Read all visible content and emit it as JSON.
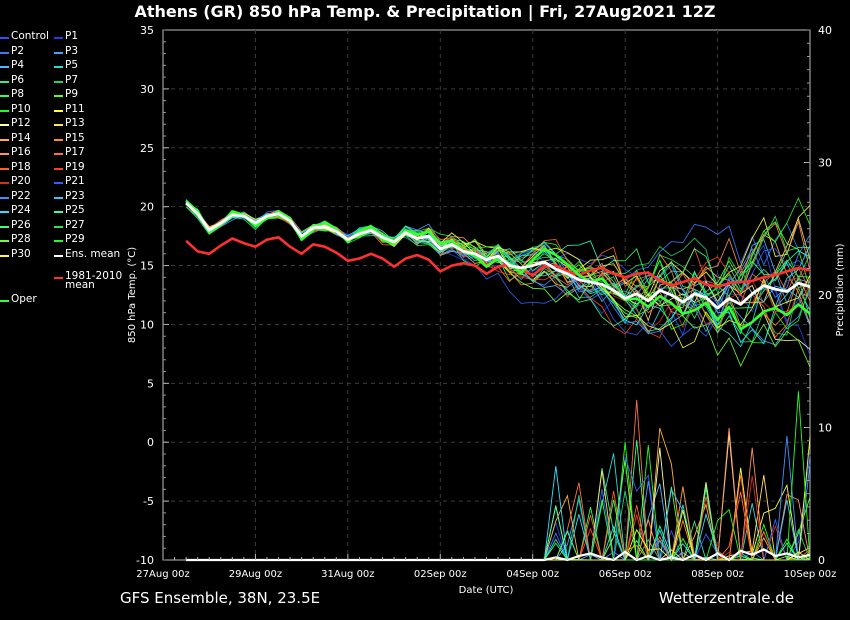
{
  "chart_data": {
    "type": "line",
    "title": "Athens  (GR)  850 hPa Temp. & Precipitation | Fri, 27Aug2021 12Z",
    "xlabel": "Date (UTC)",
    "ylabel_left": "850 hPa Temp. (°C)",
    "ylabel_right": "Precipitation (mm)",
    "x_ticks": [
      "27Aug 00z",
      "29Aug 00z",
      "31Aug 00z",
      "02Sep 00z",
      "04Sep 00z",
      "06Sep 00z",
      "08Sep 00z",
      "10Sep 00z"
    ],
    "y_left_ticks": [
      "-10",
      "-5",
      "0",
      "5",
      "10",
      "15",
      "20",
      "25",
      "30",
      "35"
    ],
    "y_right_ticks": [
      "0",
      "10",
      "20",
      "30",
      "40"
    ],
    "ylim_left": [
      -10,
      35
    ],
    "ylim_right": [
      0,
      40
    ],
    "xlim_hours": [
      0,
      336
    ],
    "grid": true,
    "legend_placement": "left",
    "series": [
      {
        "name": "1981-2010 mean",
        "color": "#ff3030",
        "kind": "climate",
        "x": [
          12,
          18,
          24,
          30,
          36,
          42,
          48,
          54,
          60,
          66,
          72,
          78,
          84,
          90,
          96,
          102,
          108,
          114,
          120,
          126,
          132,
          138,
          144,
          150,
          156,
          162,
          168,
          174,
          180,
          186,
          192,
          198,
          204,
          210,
          216,
          222,
          228,
          234,
          240,
          246,
          252,
          258,
          264,
          270,
          276,
          282,
          288,
          294,
          300,
          306,
          312,
          318,
          324,
          330,
          336
        ],
        "values": [
          17.1,
          16.2,
          16.0,
          16.7,
          17.3,
          16.9,
          16.6,
          17.2,
          17.4,
          16.6,
          16.0,
          16.8,
          16.6,
          16.1,
          15.4,
          15.6,
          16.0,
          15.6,
          14.9,
          15.6,
          15.9,
          15.5,
          14.5,
          15.0,
          15.2,
          15.0,
          14.3,
          14.9,
          15.1,
          14.6,
          14.2,
          14.9,
          15.0,
          14.5,
          14.2,
          14.6,
          14.8,
          14.3,
          14.0,
          14.3,
          14.4,
          13.7,
          13.3,
          13.6,
          13.9,
          13.4,
          13.2,
          13.5,
          13.6,
          13.7,
          14.0,
          14.2,
          14.5,
          14.8,
          14.6
        ]
      },
      {
        "name": "Ens. mean",
        "color": "#ffffff",
        "kind": "mean",
        "x": [
          12,
          18,
          24,
          30,
          36,
          42,
          48,
          54,
          60,
          66,
          72,
          78,
          84,
          90,
          96,
          102,
          108,
          114,
          120,
          126,
          132,
          138,
          144,
          150,
          156,
          162,
          168,
          174,
          180,
          186,
          192,
          198,
          204,
          210,
          216,
          222,
          228,
          234,
          240,
          246,
          252,
          258,
          264,
          270,
          276,
          282,
          288,
          294,
          300,
          306,
          312,
          318,
          324,
          330,
          336
        ],
        "values": [
          20.3,
          19.4,
          18.0,
          18.6,
          19.3,
          19.2,
          18.6,
          19.2,
          19.4,
          18.8,
          17.5,
          18.2,
          18.3,
          17.9,
          17.2,
          17.7,
          18.0,
          17.4,
          17.0,
          17.8,
          17.3,
          17.5,
          16.4,
          16.8,
          16.2,
          16.0,
          15.5,
          15.8,
          15.0,
          14.8,
          15.0,
          15.3,
          14.7,
          14.3,
          13.8,
          13.6,
          13.4,
          12.9,
          12.2,
          12.6,
          12.0,
          12.9,
          12.5,
          11.9,
          12.6,
          12.3,
          11.4,
          12.2,
          11.7,
          12.6,
          13.3,
          13.0,
          12.8,
          13.5,
          13.2
        ]
      },
      {
        "name": "Oper",
        "color": "#33ff33",
        "kind": "oper",
        "x": [
          12,
          18,
          24,
          30,
          36,
          42,
          48,
          54,
          60,
          66,
          72,
          78,
          84,
          90,
          96,
          102,
          108,
          114,
          120,
          126,
          132,
          138,
          144,
          150,
          156,
          162,
          168,
          174,
          180,
          186,
          192,
          198,
          204,
          210,
          216,
          222,
          228,
          234,
          240,
          246,
          252,
          258,
          264,
          270,
          276,
          282,
          288,
          294,
          300,
          306,
          312,
          318,
          324,
          330,
          336
        ],
        "values": [
          20.5,
          19.6,
          17.8,
          18.5,
          19.6,
          19.3,
          18.4,
          19.0,
          19.6,
          19.0,
          17.2,
          18.0,
          18.7,
          18.1,
          17.0,
          17.9,
          18.3,
          17.2,
          16.8,
          18.0,
          17.6,
          17.9,
          16.9,
          17.1,
          16.2,
          15.8,
          14.9,
          15.6,
          15.2,
          14.4,
          15.5,
          16.4,
          15.9,
          15.1,
          14.2,
          13.6,
          13.9,
          12.8,
          12.1,
          12.2,
          11.5,
          12.4,
          11.8,
          10.9,
          11.2,
          11.8,
          10.4,
          11.5,
          9.6,
          10.2,
          11.1,
          11.4,
          10.8,
          11.7,
          10.9
        ]
      }
    ],
    "precipitation_mean": {
      "x": [
        204,
        216,
        222,
        228,
        240,
        252,
        264,
        276,
        288,
        300,
        306,
        312,
        318,
        324,
        330,
        336
      ],
      "values": [
        0.2,
        0.3,
        0.5,
        0.2,
        0.6,
        0.3,
        0.2,
        0.4,
        0.5,
        0.7,
        0.4,
        0.8,
        0.3,
        0.5,
        0.2,
        0.4
      ]
    }
  },
  "legend": {
    "items": [
      {
        "label": "Control",
        "color": "#3050ff"
      },
      {
        "label": "P1",
        "color": "#2040e0"
      },
      {
        "label": "P2",
        "color": "#3a78ff"
      },
      {
        "label": "P3",
        "color": "#4aa0ff"
      },
      {
        "label": "P4",
        "color": "#50b8ff"
      },
      {
        "label": "P5",
        "color": "#30d8d0"
      },
      {
        "label": "P6",
        "color": "#30e8a0"
      },
      {
        "label": "P7",
        "color": "#20d070"
      },
      {
        "label": "P8",
        "color": "#30ff60"
      },
      {
        "label": "P9",
        "color": "#50ff30"
      },
      {
        "label": "P10",
        "color": "#20ff20"
      },
      {
        "label": "P11",
        "color": "#ffff40"
      },
      {
        "label": "P12",
        "color": "#ffffa0"
      },
      {
        "label": "P13",
        "color": "#ffe060"
      },
      {
        "label": "P14",
        "color": "#ffb040"
      },
      {
        "label": "P15",
        "color": "#ff9020"
      },
      {
        "label": "P16",
        "color": "#ff9060"
      },
      {
        "label": "P17",
        "color": "#ff7040"
      },
      {
        "label": "P18",
        "color": "#ff6020"
      },
      {
        "label": "P19",
        "color": "#ff4020"
      },
      {
        "label": "P20",
        "color": "#d03020"
      },
      {
        "label": "P21",
        "color": "#3060ff"
      },
      {
        "label": "P22",
        "color": "#4090ff"
      },
      {
        "label": "P23",
        "color": "#40c0ff"
      },
      {
        "label": "P24",
        "color": "#30e0ff"
      },
      {
        "label": "P25",
        "color": "#30ffb0"
      },
      {
        "label": "P26",
        "color": "#40ff80"
      },
      {
        "label": "P27",
        "color": "#30e050"
      },
      {
        "label": "P28",
        "color": "#70ff40"
      },
      {
        "label": "P29",
        "color": "#20ff20"
      },
      {
        "label": "P30",
        "color": "#ffff30"
      },
      {
        "label": "Ens. mean",
        "color": "#ffffff"
      },
      {
        "label": "1981-2010\nmean",
        "color": "#ff3030"
      },
      {
        "label": "Oper",
        "color": "#33ff33"
      }
    ]
  },
  "footer": {
    "left": "GFS Ensemble, 38N, 23.5E",
    "right": "Wetterzentrale.de"
  }
}
